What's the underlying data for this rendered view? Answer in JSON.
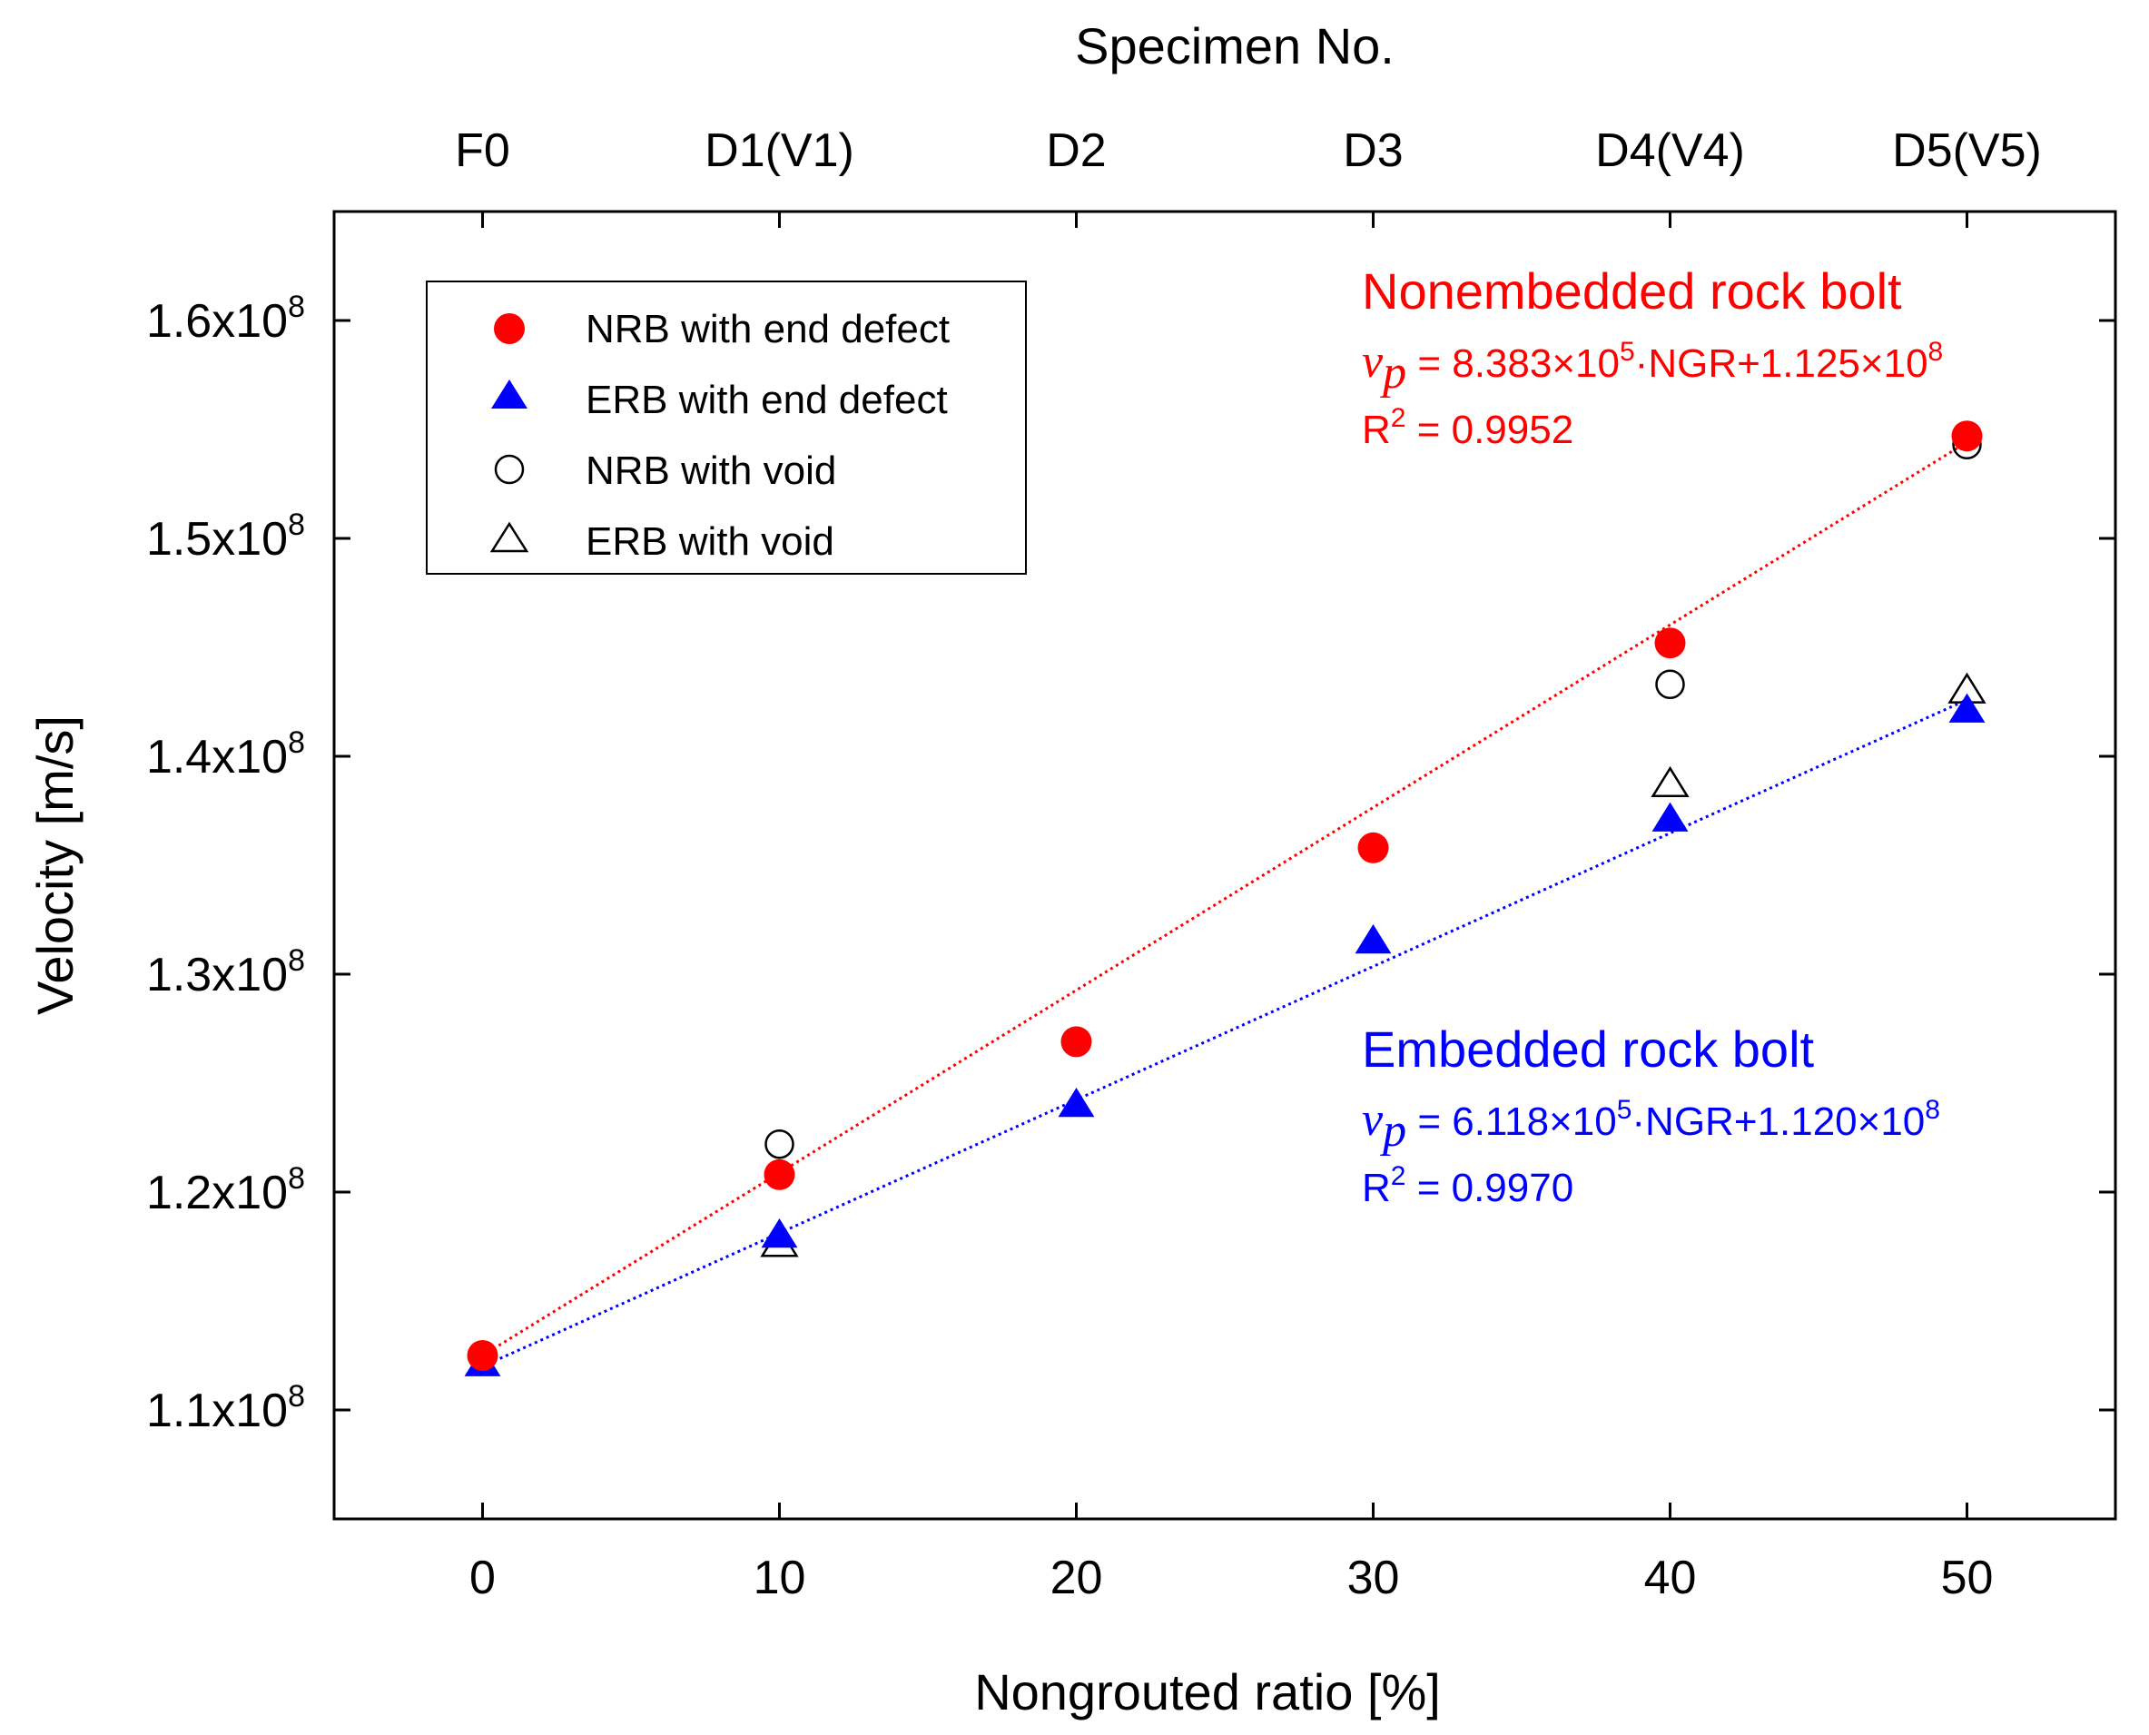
{
  "chart_data": {
    "type": "scatter",
    "title": "",
    "xlabel": "Nongrouted ratio [%]",
    "ylabel": "Velocity [m/s]",
    "top_xlabel": "Specimen No.",
    "xlim": [
      -5,
      55
    ],
    "ylim": [
      105000000.0,
      165000000.0
    ],
    "x_ticks": [
      0,
      10,
      20,
      30,
      40,
      50
    ],
    "x_tick_labels": [
      "0",
      "10",
      "20",
      "30",
      "40",
      "50"
    ],
    "top_ticks": [
      0,
      10,
      20,
      30,
      40,
      50
    ],
    "top_tick_labels": [
      "F0",
      "D1(V1)",
      "D2",
      "D3",
      "D4(V4)",
      "D5(V5)"
    ],
    "y_ticks": [
      110000000.0,
      120000000.0,
      130000000.0,
      140000000.0,
      150000000.0,
      160000000.0
    ],
    "y_tick_labels": [
      {
        "mant": "1.1x10",
        "exp": "8"
      },
      {
        "mant": "1.2x10",
        "exp": "8"
      },
      {
        "mant": "1.3x10",
        "exp": "8"
      },
      {
        "mant": "1.4x10",
        "exp": "8"
      },
      {
        "mant": "1.5x10",
        "exp": "8"
      },
      {
        "mant": "1.6x10",
        "exp": "8"
      }
    ],
    "grid": false,
    "legend_position": "top-left",
    "series": [
      {
        "key": "nrb_end",
        "name": "NRB with end defect",
        "marker": "circle",
        "filled": true,
        "color": "#ff0000",
        "x": [
          0,
          10,
          20,
          30,
          40,
          50
        ],
        "y": [
          112500000.0,
          120800000.0,
          126900000.0,
          135800000.0,
          145200000.0,
          154700000.0
        ]
      },
      {
        "key": "erb_end",
        "name": "ERB with end defect",
        "marker": "triangle",
        "filled": true,
        "color": "#0000ff",
        "x": [
          0,
          10,
          20,
          30,
          40,
          50
        ],
        "y": [
          112100000.0,
          118000000.0,
          124000000.0,
          131500000.0,
          137100000.0,
          142100000.0
        ]
      },
      {
        "key": "nrb_void",
        "name": "NRB with void",
        "marker": "circle",
        "filled": false,
        "color": "#000000",
        "x": [
          10,
          40,
          50
        ],
        "y": [
          122200000.0,
          143300000.0,
          154300000.0
        ]
      },
      {
        "key": "erb_void",
        "name": "ERB with void",
        "marker": "triangle",
        "filled": false,
        "color": "#000000",
        "x": [
          10,
          40,
          50
        ],
        "y": [
          117600000.0,
          138700000.0,
          143000000.0
        ]
      }
    ],
    "fits": [
      {
        "key": "nrb_fit",
        "slope": 838300.0,
        "intercept": 112500000.0,
        "x_range": [
          0,
          50
        ],
        "color": "#ff0000"
      },
      {
        "key": "erb_fit",
        "slope": 611800.0,
        "intercept": 112000000.0,
        "x_range": [
          0,
          50
        ],
        "color": "#0000ff"
      }
    ],
    "annotations": {
      "nonembedded": {
        "title": "Nonembedded rock bolt",
        "vp": "v",
        "vp_sub": "p",
        "eq_part1": " = 8.383×10",
        "eq_exp1": "5",
        "eq_part2": "·NGR+1.125×10",
        "eq_exp2": "8",
        "r2_label": "R",
        "r2_exp": "2",
        "r2_value": " = 0.9952",
        "color": "#ff0000"
      },
      "embedded": {
        "title": "Embedded rock bolt",
        "vp": "v",
        "vp_sub": "p",
        "eq_part1": " = 6.118×10",
        "eq_exp1": "5",
        "eq_part2": "·NGR+1.120×10",
        "eq_exp2": "8",
        "r2_label": "R",
        "r2_exp": "2",
        "r2_value": " = 0.9970",
        "color": "#0000ff"
      }
    }
  }
}
